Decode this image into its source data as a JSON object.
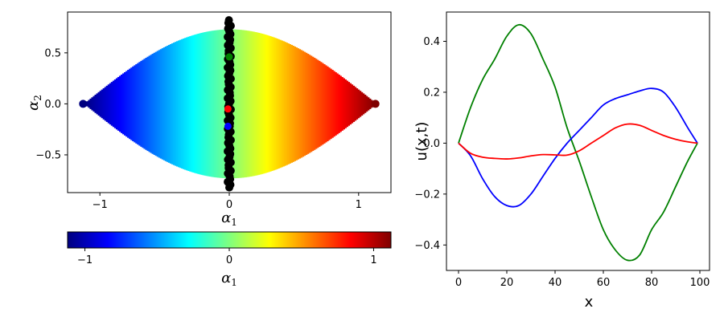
{
  "colors": {
    "jet": [
      "#00007f",
      "#0000ff",
      "#007fff",
      "#00ffff",
      "#7fff7f",
      "#ffff00",
      "#ff7f00",
      "#ff0000",
      "#7f0000"
    ]
  },
  "chart_data": [
    {
      "type": "scatter",
      "xlabel_base": "α",
      "xlabel_sub": "1",
      "ylabel_base": "α",
      "ylabel_sub": "2",
      "xlim": [
        -1.25,
        1.25
      ],
      "ylim": [
        -0.87,
        0.9
      ],
      "xticks": [
        -1,
        0,
        1
      ],
      "xtick_labels": [
        "−1",
        "0",
        "1"
      ],
      "yticks": [
        -0.5,
        0.0,
        0.5
      ],
      "ytick_labels": [
        "−0.5",
        "0.0",
        "0.5"
      ],
      "envelope_half_width": 1.13,
      "envelope_peak": 0.73,
      "color_by": "α1",
      "highlight_points": [
        {
          "color": "#008000",
          "x": 0.0,
          "y": 0.46
        },
        {
          "color": "#ff0000",
          "x": -0.01,
          "y": -0.05
        },
        {
          "color": "#0000ff",
          "x": -0.01,
          "y": -0.22
        }
      ],
      "black_band": {
        "x_center": 0.0,
        "y_range": [
          -0.82,
          0.82
        ]
      }
    },
    {
      "type": "colorbar",
      "label_base": "α",
      "label_sub": "1",
      "range": [
        -1.12,
        1.12
      ],
      "ticks": [
        -1,
        0,
        1
      ],
      "tick_labels": [
        "−1",
        "0",
        "1"
      ]
    },
    {
      "type": "line",
      "xlabel": "x",
      "ylabel": "u(x,t)",
      "xlim": [
        -5,
        104
      ],
      "ylim": [
        -0.5,
        0.515
      ],
      "xticks": [
        0,
        20,
        40,
        60,
        80,
        100
      ],
      "xtick_labels": [
        "0",
        "20",
        "40",
        "60",
        "80",
        "100"
      ],
      "yticks": [
        -0.4,
        -0.2,
        0.0,
        0.2,
        0.4
      ],
      "ytick_labels": [
        "−0.4",
        "−0.2",
        "0.0",
        "0.2",
        "0.4"
      ],
      "series": [
        {
          "color": "#008000",
          "x": [
            0,
            5,
            10,
            15,
            20,
            25,
            30,
            35,
            40,
            45,
            50,
            55,
            60,
            65,
            70,
            75,
            80,
            85,
            90,
            95,
            99
          ],
          "y": [
            0.0,
            0.14,
            0.25,
            0.33,
            0.42,
            0.465,
            0.43,
            0.33,
            0.22,
            0.06,
            -0.07,
            -0.21,
            -0.34,
            -0.42,
            -0.46,
            -0.44,
            -0.34,
            -0.27,
            -0.17,
            -0.07,
            0.0
          ]
        },
        {
          "color": "#0000ff",
          "x": [
            0,
            5,
            10,
            15,
            20,
            25,
            30,
            35,
            40,
            45,
            50,
            55,
            60,
            65,
            70,
            75,
            80,
            85,
            90,
            95,
            99
          ],
          "y": [
            0.0,
            -0.05,
            -0.14,
            -0.21,
            -0.245,
            -0.245,
            -0.2,
            -0.13,
            -0.06,
            0.0,
            0.05,
            0.1,
            0.15,
            0.175,
            0.19,
            0.205,
            0.215,
            0.2,
            0.14,
            0.06,
            0.0
          ]
        },
        {
          "color": "#ff0000",
          "x": [
            0,
            5,
            10,
            15,
            20,
            25,
            30,
            35,
            40,
            45,
            50,
            55,
            60,
            65,
            70,
            75,
            80,
            85,
            90,
            95,
            99
          ],
          "y": [
            0.0,
            -0.04,
            -0.055,
            -0.06,
            -0.062,
            -0.058,
            -0.05,
            -0.045,
            -0.046,
            -0.047,
            -0.03,
            0.0,
            0.03,
            0.06,
            0.075,
            0.07,
            0.05,
            0.03,
            0.015,
            0.005,
            0.0
          ]
        }
      ]
    }
  ]
}
